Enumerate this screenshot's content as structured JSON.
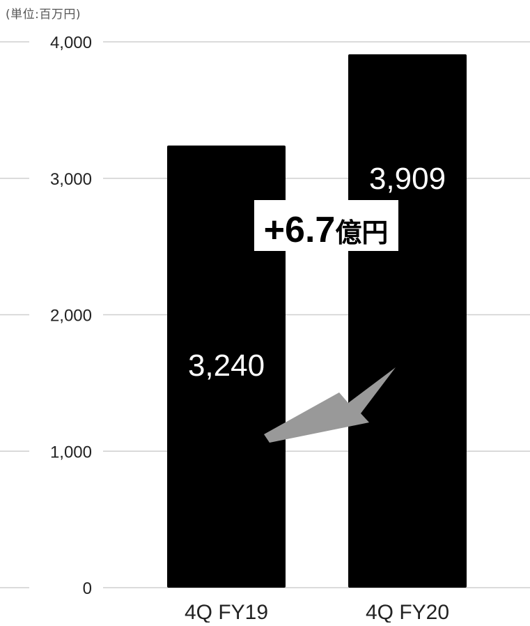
{
  "chart_data": {
    "type": "bar",
    "unit_label": "(単位:百万円)",
    "categories": [
      "4Q FY19",
      "4Q FY20"
    ],
    "values": [
      3240,
      3909
    ],
    "value_labels": [
      "3,240",
      "3,909"
    ],
    "ylim": [
      0,
      4000
    ],
    "yticks": [
      0,
      1000,
      2000,
      3000,
      4000
    ],
    "ytick_labels": [
      "0",
      "1,000",
      "2,000",
      "3,000",
      "4,000"
    ],
    "grid": true,
    "annotations": {
      "delta_number": "+6.7",
      "delta_unit": "億円"
    },
    "colors": {
      "bar": "#000000",
      "value_label": "#ffffff",
      "arrow": "#999999",
      "grid": "#cfcfcf",
      "axis_text": "#222222"
    }
  }
}
